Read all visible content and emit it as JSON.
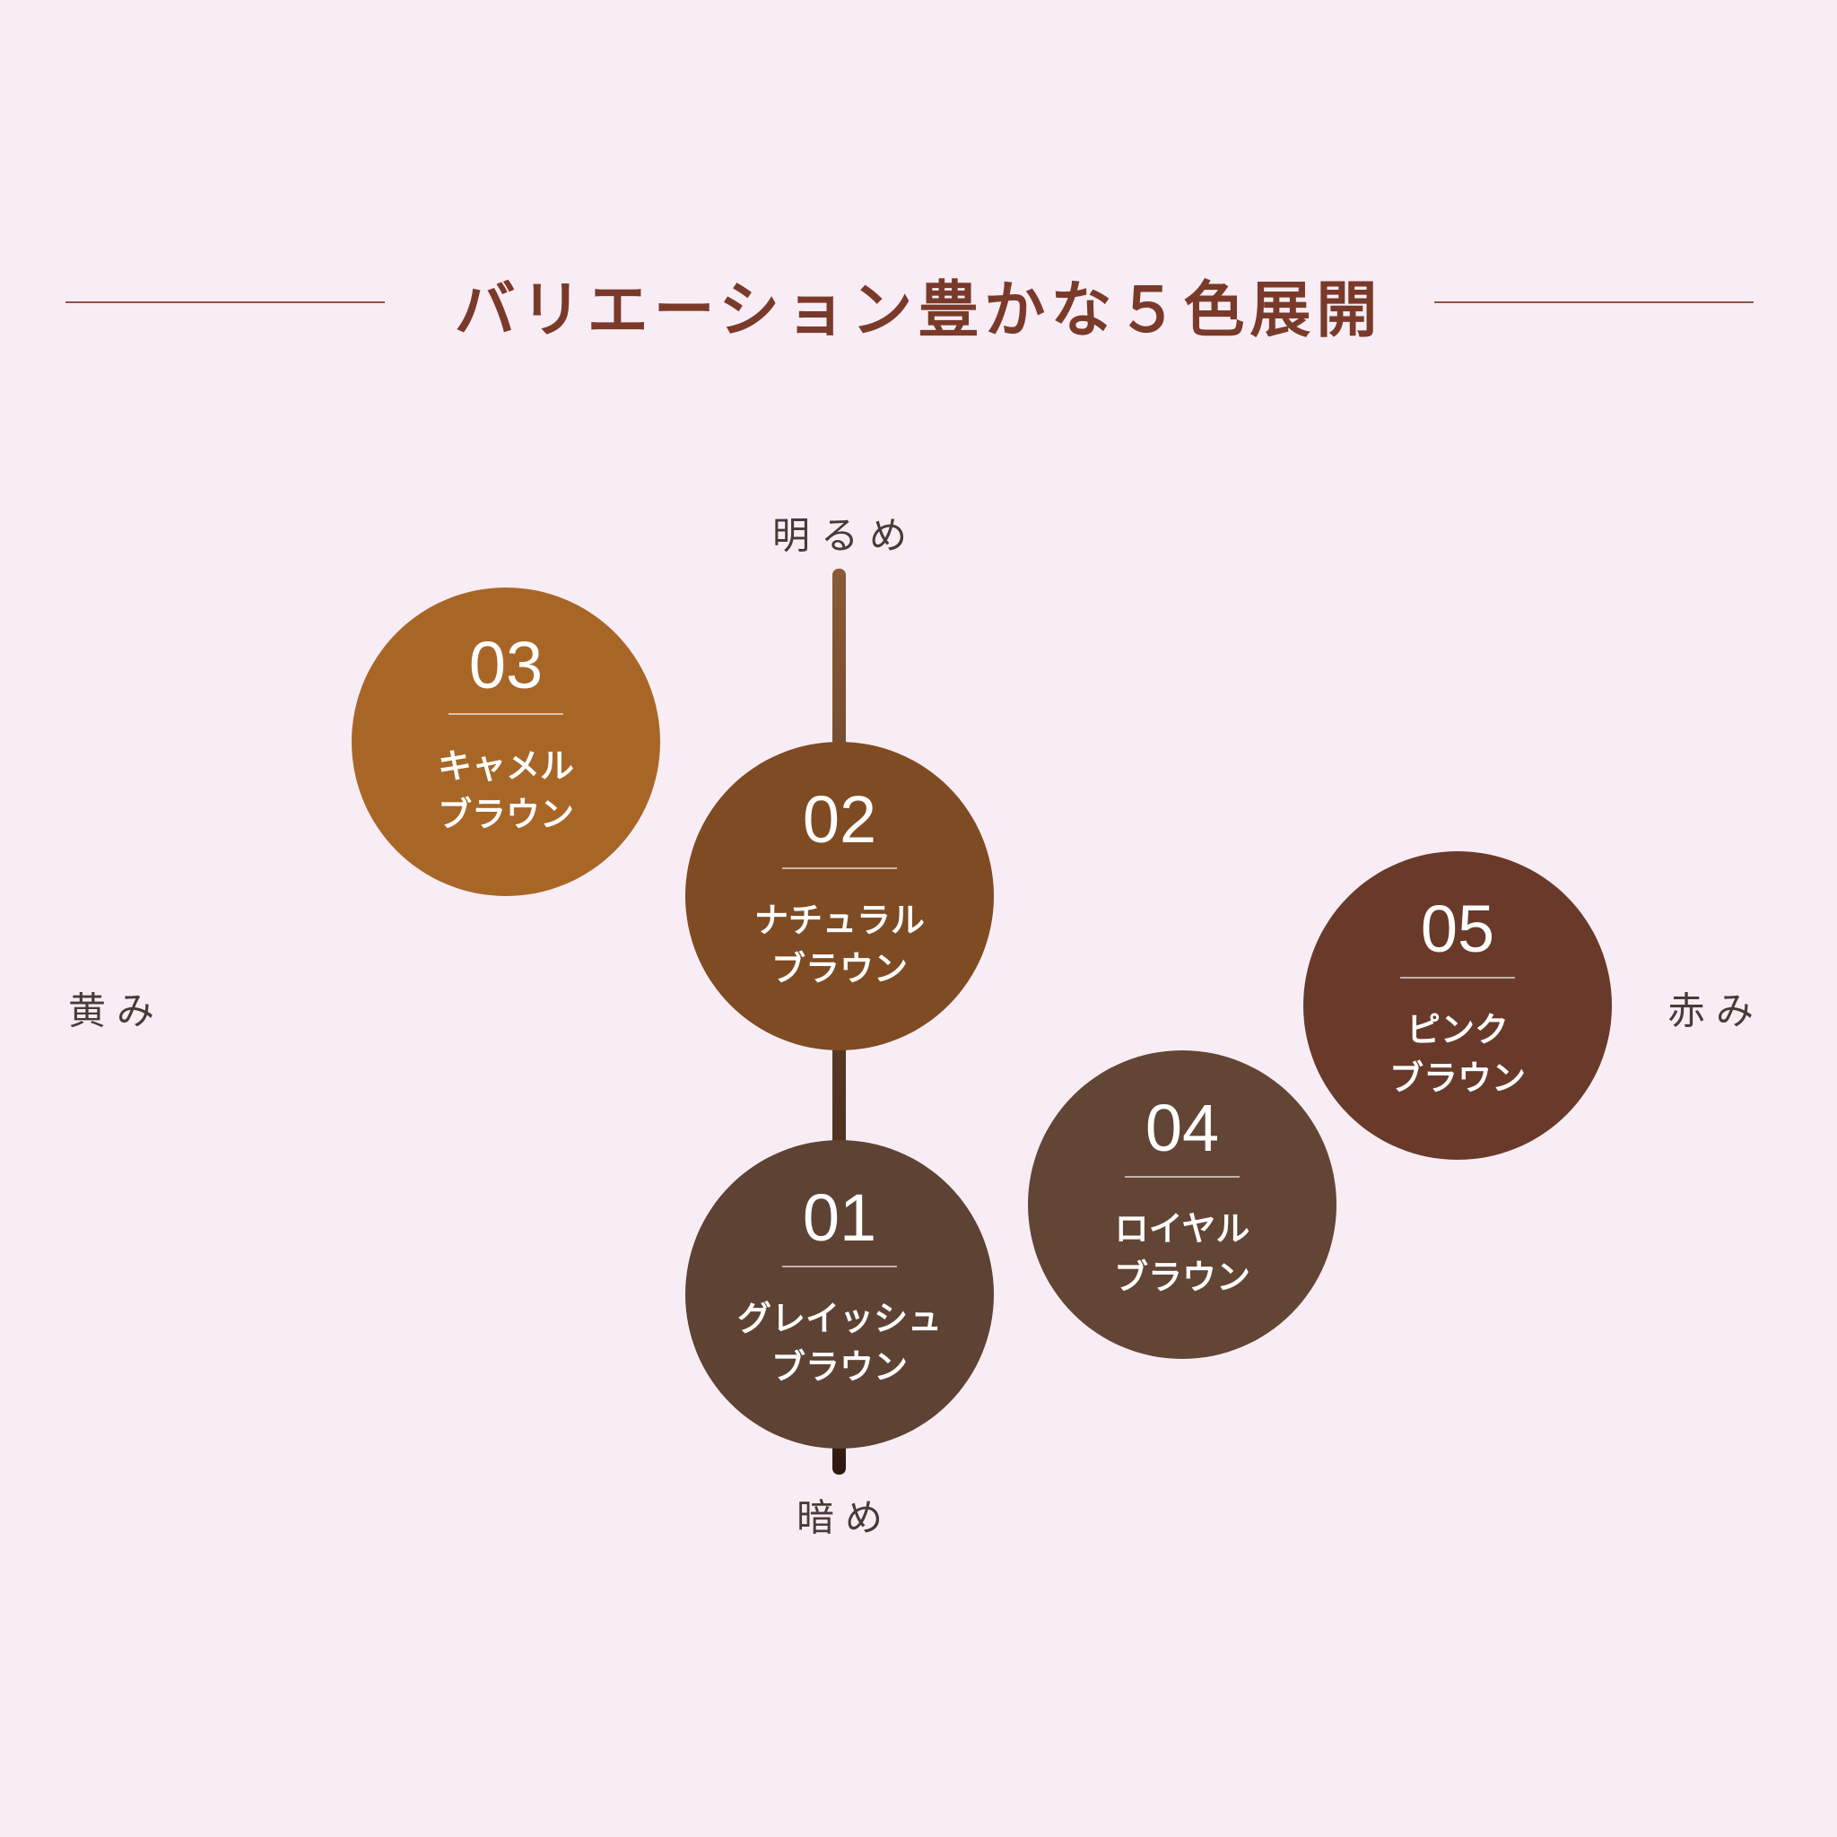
{
  "title": "バリエーション豊かな５色展開",
  "axes": {
    "top": "明るめ",
    "bottom": "暗め",
    "left": "黄み",
    "right": "赤み"
  },
  "colors": {
    "background": "#f8edf5",
    "title": "#7a3a2a",
    "axis_left": "#9a6a25",
    "axis_right": "#6e1a2a",
    "axis_top": "#8a5a36",
    "axis_bottom": "#2e1a12"
  },
  "variants": [
    {
      "num": "03",
      "line1": "キャメル",
      "line2": "ブラウン",
      "color": "#a86626"
    },
    {
      "num": "02",
      "line1": "ナチュラル",
      "line2": "ブラウン",
      "color": "#7f4b22"
    },
    {
      "num": "05",
      "line1": "ピンク",
      "line2": "ブラウン",
      "color": "#693a2a"
    },
    {
      "num": "04",
      "line1": "ロイヤル",
      "line2": "ブラウン",
      "color": "#634535"
    },
    {
      "num": "01",
      "line1": "グレイッシュ",
      "line2": "ブラウン",
      "color": "#5e4233"
    }
  ]
}
